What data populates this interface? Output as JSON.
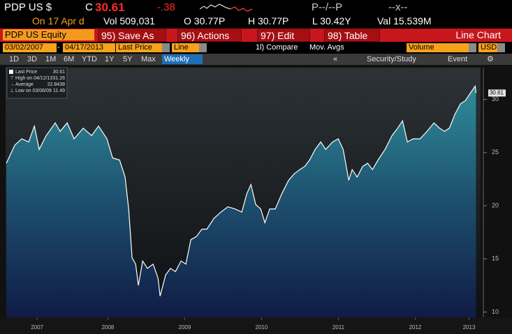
{
  "header": {
    "ticker": "PDP US $",
    "close_label": "C",
    "close": "30.61",
    "change": "-.38",
    "bid_ask": "P--/--P",
    "size": "--x--",
    "date": "On 17 Apr d",
    "volume": "Vol 509,031",
    "open": "O 30.77P",
    "high": "H 30.77P",
    "low": "L 30.42Y",
    "value": "Val 15.539M"
  },
  "menu": {
    "security": "PDP US Equity",
    "buttons": [
      "95) Save As",
      "96) Actions",
      "97) Edit",
      "98) Table"
    ],
    "view": "Line Chart"
  },
  "controls": {
    "start_date": "03/02/2007",
    "separator": "-",
    "end_date": "04/17/2013",
    "field": "Last Price",
    "style": "Line",
    "compare": "1l) Compare",
    "mov_avgs": "Mov. Avgs",
    "volume": "Volume",
    "currency": "USD"
  },
  "periods": [
    "1D",
    "3D",
    "1M",
    "6M",
    "YTD",
    "1Y",
    "5Y",
    "Max",
    "Weekly"
  ],
  "collapse": "«",
  "tools": [
    "Security/Study",
    "Event"
  ],
  "chart_data": {
    "type": "line",
    "x": [
      2007.18,
      2007.289,
      2007.38,
      2007.471,
      2007.544,
      2007.607,
      2007.698,
      2007.816,
      2007.88,
      2007.971,
      2008.062,
      2008.18,
      2008.289,
      2008.38,
      2008.489,
      2008.562,
      2008.653,
      2008.725,
      2008.771,
      2008.816,
      2008.862,
      2008.898,
      2008.953,
      2009.016,
      2009.089,
      2009.153,
      2009.18,
      2009.253,
      2009.316,
      2009.38,
      2009.453,
      2009.516,
      2009.58,
      2009.653,
      2009.725,
      2009.789,
      2009.88,
      2009.971,
      2010.062,
      2010.153,
      2010.244,
      2010.307,
      2010.362,
      2010.425,
      2010.489,
      2010.544,
      2010.607,
      2010.68,
      2010.762,
      2010.853,
      2010.925,
      2010.998,
      2011.062,
      2011.125,
      2011.198,
      2011.271,
      2011.335,
      2011.425,
      2011.498,
      2011.562,
      2011.635,
      2011.68,
      2011.744,
      2011.816,
      2011.88,
      2011.944,
      2012.016,
      2012.107,
      2012.198,
      2012.271,
      2012.335,
      2012.398,
      2012.471,
      2012.562,
      2012.653,
      2012.744,
      2012.816,
      2012.88,
      2012.944,
      2013.016,
      2013.089,
      2013.153,
      2013.216,
      2013.28,
      2013.29
    ],
    "series": [
      {
        "name": "Last Price",
        "color": "#ffffff",
        "value_label": "30.61",
        "values": [
          24.0,
          25.7,
          26.3,
          26.0,
          27.5,
          25.3,
          26.6,
          27.8,
          27.0,
          27.8,
          26.3,
          27.3,
          26.6,
          27.5,
          26.3,
          24.5,
          24.3,
          22.7,
          19.7,
          15.1,
          14.5,
          12.5,
          14.8,
          14.1,
          14.5,
          13.2,
          11.49,
          13.5,
          14.1,
          13.8,
          14.8,
          14.5,
          16.8,
          17.1,
          17.8,
          17.8,
          18.8,
          19.4,
          19.9,
          19.7,
          19.4,
          21.1,
          22.0,
          20.1,
          19.7,
          18.4,
          19.7,
          19.7,
          21.1,
          22.4,
          23.0,
          23.4,
          23.7,
          24.3,
          25.3,
          26.0,
          25.3,
          26.0,
          26.3,
          25.3,
          22.4,
          23.4,
          22.7,
          23.7,
          24.0,
          23.4,
          24.3,
          25.3,
          26.6,
          27.3,
          28.0,
          26.0,
          26.3,
          26.3,
          27.0,
          27.8,
          27.3,
          27.0,
          27.3,
          28.6,
          29.6,
          29.9,
          30.6,
          31.26,
          30.61
        ]
      }
    ],
    "stats": [
      {
        "label": "High on 04/12/13",
        "value": "31.26"
      },
      {
        "label": "Average",
        "value": "22.8438"
      },
      {
        "label": "Low on 03/06/09",
        "value": "11.49"
      }
    ],
    "xlim": [
      2007.17,
      2013.35
    ],
    "xticks": [
      {
        "value": 2007.58,
        "label": "2007"
      },
      {
        "value": 2008.5,
        "label": "2008"
      },
      {
        "value": 2009.5,
        "label": "2009"
      },
      {
        "value": 2010.5,
        "label": "2010"
      },
      {
        "value": 2011.5,
        "label": "2011"
      },
      {
        "value": 2012.5,
        "label": "2012"
      },
      {
        "value": 2013.2,
        "label": "2013"
      }
    ],
    "ylim": [
      9.5,
      33
    ],
    "yticks": [
      10,
      15,
      20,
      25,
      30
    ],
    "grid": false
  }
}
